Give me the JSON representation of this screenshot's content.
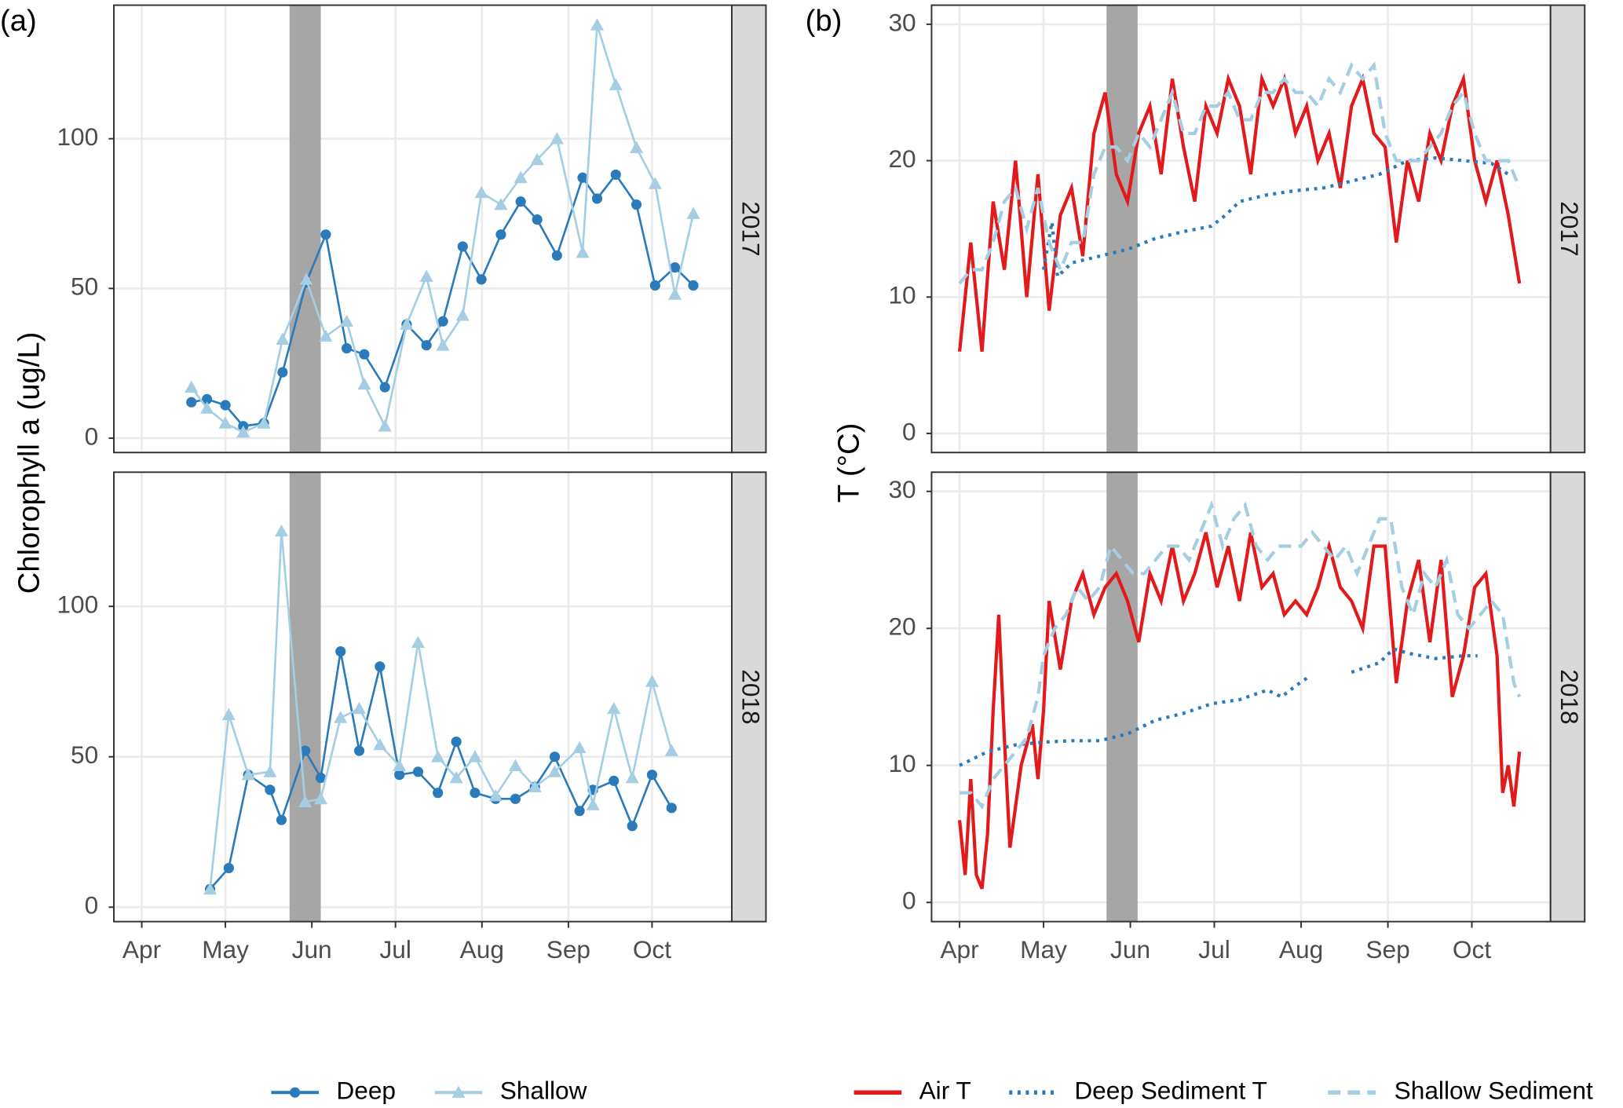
{
  "chart_data": [
    {
      "type": "line",
      "panel_label": "(a)",
      "y_label": "Chlorophyll a (ug/L)",
      "xlim": [
        81,
        302.6
      ],
      "xticks": [
        {
          "value": 91,
          "label": "Apr"
        },
        {
          "value": 121,
          "label": "May"
        },
        {
          "value": 152,
          "label": "Jun"
        },
        {
          "value": 182,
          "label": "Jul"
        },
        {
          "value": 213,
          "label": "Aug"
        },
        {
          "value": 244,
          "label": "Sep"
        },
        {
          "value": 274,
          "label": "Oct"
        }
      ],
      "ylim": [
        -4.8,
        144.6
      ],
      "yticks": [
        0,
        50,
        100
      ],
      "grid": true,
      "highlight": [
        144,
        155.2
      ],
      "facet_labels": [
        "2017",
        "2018"
      ],
      "series": [
        {
          "name": "Deep",
          "color": "#2b7bba",
          "marker": "circle",
          "dash": "solid",
          "x": [
            [
              108.8,
              114.4,
              121,
              127.4,
              134.8,
              141.5,
              150,
              157,
              164.5,
              170.8,
              178.2,
              186,
              193.1,
              199,
              206.1,
              212.8,
              219.8,
              226.9,
              232.8,
              239.9,
              249.1,
              254.3,
              261,
              268.4,
              275.1,
              282.2,
              288.8
            ],
            [
              115.5,
              122.2,
              129.2,
              137,
              141.1,
              149.6,
              155.2,
              162.3,
              169,
              176.4,
              183.4,
              190.1,
              197.2,
              203.8,
              210.5,
              217.9,
              225,
              232,
              239.1,
              248,
              252.8,
              260.3,
              266.9,
              274,
              281
            ]
          ],
          "values": [
            [
              12,
              13,
              11,
              4,
              5,
              22,
              52,
              68,
              30,
              28,
              17,
              38,
              31,
              39,
              64,
              53,
              68,
              79,
              73,
              61,
              87,
              80,
              88,
              78,
              51,
              57,
              51
            ],
            [
              6,
              13,
              44,
              39,
              29,
              52,
              43,
              85,
              52,
              80,
              44,
              45,
              38,
              55,
              38,
              36,
              36,
              40,
              50,
              32,
              39,
              42,
              27,
              44,
              33
            ]
          ]
        },
        {
          "name": "Shallow",
          "color": "#a6cee3",
          "marker": "triangle",
          "dash": "solid",
          "x": [
            [
              108.8,
              114.4,
              121,
              127.4,
              134.8,
              141.5,
              150,
              157,
              164.5,
              170.8,
              178.2,
              186,
              193.1,
              199,
              206.1,
              212.8,
              219.8,
              226.9,
              232.8,
              239.9,
              249.1,
              254.3,
              261,
              268.4,
              275.1,
              282.2,
              288.8
            ],
            [
              115.5,
              122.2,
              129.2,
              137,
              141.1,
              149.6,
              155.2,
              162.3,
              169,
              176.4,
              183.4,
              190.1,
              197.2,
              203.8,
              210.5,
              217.9,
              225,
              232,
              239.1,
              248,
              252.8,
              260.3,
              266.9,
              274,
              281
            ]
          ],
          "values": [
            [
              17,
              10,
              5,
              2,
              5,
              33,
              53,
              34,
              39,
              18,
              4,
              38,
              54,
              31,
              41,
              82,
              78,
              87,
              93,
              100,
              62,
              138,
              118,
              97,
              85,
              48,
              75
            ],
            [
              6,
              64,
              44,
              45,
              125,
              35,
              36,
              63,
              66,
              54,
              47,
              88,
              50,
              43,
              50,
              37,
              47,
              40,
              45,
              53,
              34,
              66,
              43,
              75,
              52
            ]
          ]
        }
      ]
    },
    {
      "type": "line",
      "panel_label": "(b)",
      "y_label": "T (°C)",
      "xlim": [
        81,
        302.1
      ],
      "xticks": [
        {
          "value": 91,
          "label": "Apr"
        },
        {
          "value": 121,
          "label": "May"
        },
        {
          "value": 152,
          "label": "Jun"
        },
        {
          "value": 182,
          "label": "Jul"
        },
        {
          "value": 213,
          "label": "Aug"
        },
        {
          "value": 244,
          "label": "Sep"
        },
        {
          "value": 274,
          "label": "Oct"
        }
      ],
      "ylim": [
        -1.4,
        31.4
      ],
      "yticks": [
        0,
        10,
        20,
        30
      ],
      "grid": true,
      "highlight": [
        143.5,
        154.6
      ],
      "facet_labels": [
        "2017",
        "2018"
      ],
      "series": [
        {
          "name": "Air T",
          "color": "#e31a1c",
          "marker": "none",
          "dash": "solid",
          "x": [
            [
              91,
              95,
              99,
              103,
              107,
              111,
              115,
              119,
              123,
              127,
              131,
              135,
              139,
              143,
              147,
              151,
              155,
              159,
              163,
              167,
              171,
              175,
              179,
              183,
              187,
              191,
              195,
              199,
              203,
              207,
              211,
              215,
              219,
              223,
              227,
              231,
              235,
              239,
              243,
              247,
              251,
              255,
              259,
              263,
              267,
              271,
              275,
              279,
              283,
              287,
              291
            ],
            [
              91,
              93,
              95,
              97,
              99,
              101,
              103,
              105,
              107,
              109,
              113,
              117,
              119,
              121,
              123,
              127,
              131,
              135,
              139,
              143,
              147,
              151,
              155,
              159,
              163,
              167,
              171,
              175,
              179,
              183,
              187,
              191,
              195,
              199,
              203,
              207,
              211,
              215,
              219,
              223,
              227,
              231,
              235,
              239,
              243,
              247,
              251,
              255,
              259,
              263,
              267,
              271,
              275,
              279,
              283,
              285,
              287,
              289,
              291
            ]
          ],
          "values": [
            [
              6,
              14,
              6,
              17,
              12,
              20,
              10,
              19,
              9,
              16,
              18,
              13,
              22,
              25,
              19,
              17,
              22,
              24,
              19,
              26,
              21,
              17,
              24,
              22,
              26,
              24,
              19,
              26,
              24,
              26,
              22,
              24,
              20,
              22,
              18,
              24,
              26,
              22,
              21,
              14,
              20,
              17,
              22,
              20,
              24,
              26,
              20,
              17,
              20,
              16,
              11
            ],
            [
              6,
              2,
              9,
              2,
              1,
              5,
              14,
              21,
              12,
              4,
              10,
              13,
              9,
              14,
              22,
              17,
              22,
              24,
              21,
              23,
              24,
              22,
              19,
              24,
              22,
              26,
              22,
              24,
              27,
              23,
              26,
              22,
              27,
              23,
              24,
              21,
              22,
              21,
              23,
              26,
              23,
              22,
              20,
              26,
              26,
              16,
              22,
              25,
              19,
              25,
              15,
              18,
              23,
              24,
              18,
              8,
              10,
              7,
              11
            ]
          ]
        },
        {
          "name": "Deep Sediment T",
          "color": "#2b7bba",
          "marker": "none",
          "dash": "dotted",
          "x": [
            [
              121,
              124,
              126,
              131,
              141,
              151,
              161,
              171,
              181,
              186,
              191,
              201,
              211,
              221,
              231,
              241,
              251,
              261,
              271,
              281,
              287
            ],
            [
              91,
              101,
              111,
              121,
              131,
              141,
              151,
              161,
              171,
              181,
              191,
              201,
              206,
              211,
              216,
              221,
              231,
              241,
              246,
              251,
              261,
              271,
              276
            ]
          ],
          "values": [
            [
              12,
              15.5,
              11.5,
              12.5,
              13,
              13.5,
              14.3,
              14.8,
              15.2,
              16,
              17,
              17.5,
              17.8,
              18,
              18.5,
              19,
              20,
              20.2,
              20,
              19.8,
              19
            ],
            [
              10,
              11,
              11.5,
              11.7,
              11.8,
              11.8,
              12.3,
              13.3,
              13.8,
              14.5,
              14.8,
              15.5,
              15,
              15.8,
              16.5,
              null,
              16.8,
              17.5,
              18.5,
              18.2,
              17.8,
              18,
              18
            ]
          ]
        },
        {
          "name": "Shallow Sediment",
          "color": "#a6cee3",
          "marker": "none",
          "dash": "dashed",
          "x": [
            [
              91,
              95,
              99,
              103,
              107,
              111,
              115,
              119,
              123,
              127,
              131,
              135,
              139,
              143,
              147,
              151,
              155,
              159,
              163,
              167,
              171,
              175,
              179,
              183,
              187,
              191,
              195,
              199,
              203,
              207,
              211,
              215,
              219,
              223,
              227,
              231,
              235,
              239,
              243,
              247,
              251,
              255,
              259,
              263,
              267,
              271,
              275,
              279,
              283,
              287,
              291
            ],
            [
              91,
              95,
              99,
              103,
              107,
              111,
              115,
              119,
              121,
              125,
              129,
              133,
              137,
              141,
              145,
              149,
              153,
              157,
              161,
              165,
              169,
              173,
              177,
              181,
              185,
              189,
              193,
              197,
              201,
              205,
              209,
              213,
              217,
              221,
              225,
              229,
              233,
              237,
              241,
              245,
              249,
              253,
              257,
              261,
              265,
              269,
              273,
              277,
              281,
              285,
              289,
              291
            ]
          ],
          "values": [
            [
              11,
              12,
              12,
              14,
              17,
              18,
              15,
              18,
              14,
              12,
              14,
              14,
              19,
              21,
              21,
              20,
              22,
              21,
              23,
              25,
              22,
              22,
              24,
              24,
              25,
              23,
              23,
              25,
              25,
              26,
              25,
              25,
              24,
              26,
              25,
              27,
              26,
              27,
              22,
              20,
              20,
              20,
              21,
              22,
              24,
              25,
              22,
              20,
              20,
              20,
              18
            ],
            [
              8,
              8,
              7,
              9,
              10,
              11,
              12,
              15,
              18,
              20,
              21,
              23,
              22,
              23,
              26,
              25,
              24,
              24,
              25,
              26,
              26,
              25,
              27,
              29,
              26,
              28,
              29,
              26,
              25,
              26,
              26,
              26,
              27,
              26,
              25,
              26,
              24,
              26,
              28,
              28,
              23,
              21,
              24,
              23,
              25,
              21,
              20,
              21,
              22,
              21,
              16,
              15
            ]
          ]
        }
      ]
    }
  ]
}
